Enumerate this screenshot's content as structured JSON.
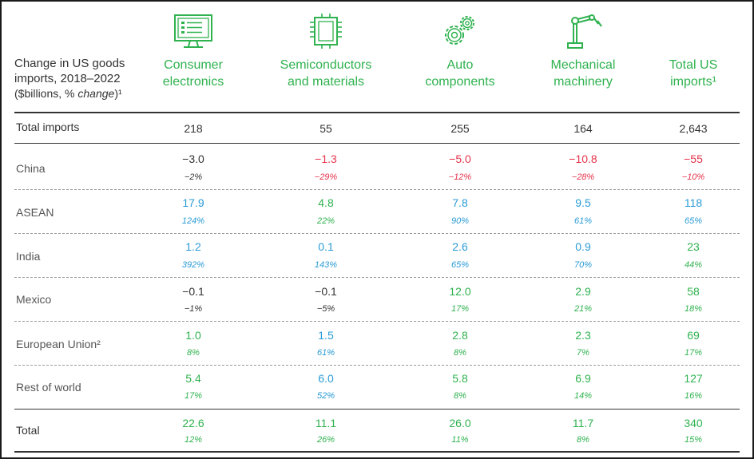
{
  "title": {
    "line1": "Change in US goods",
    "line2": "imports, 2018–2022",
    "line3_plain": "($billions, % ",
    "line3_italic": "change",
    "line3_sup": ")¹"
  },
  "columns": [
    {
      "line1": "Consumer",
      "line2": "electronics",
      "icon": "monitor-icon"
    },
    {
      "line1": "Semiconductors",
      "line2": "and materials",
      "icon": "chip-icon"
    },
    {
      "line1": "Auto",
      "line2": "components",
      "icon": "gears-icon"
    },
    {
      "line1": "Mechanical",
      "line2": "machinery",
      "icon": "robot-arm-icon"
    },
    {
      "line1": "Total US",
      "line2": "imports¹",
      "icon": ""
    }
  ],
  "colors": {
    "green": "#2fb24f",
    "red": "#e5334b",
    "blue": "#2a9bd6",
    "neutral": "#333333"
  },
  "chart_data": {
    "type": "table",
    "row_header": "Change in US goods imports, 2018–2022 ($billions, % change)¹",
    "columns": [
      "Consumer electronics",
      "Semiconductors and materials",
      "Auto components",
      "Mechanical machinery",
      "Total US imports¹"
    ],
    "rows": [
      {
        "label": "Total imports",
        "values": [
          "218",
          "55",
          "255",
          "164",
          "2,643"
        ],
        "pct": [],
        "colors": [
          "neutral",
          "neutral",
          "neutral",
          "neutral",
          "neutral"
        ]
      },
      {
        "label": "China",
        "values": [
          "−3.0",
          "−1.3",
          "−5.0",
          "−10.8",
          "−55"
        ],
        "pct": [
          "−2%",
          "−29%",
          "−12%",
          "−28%",
          "−10%"
        ],
        "colors": [
          "neutral",
          "red",
          "red",
          "red",
          "red"
        ]
      },
      {
        "label": "ASEAN",
        "values": [
          "17.9",
          "4.8",
          "7.8",
          "9.5",
          "118"
        ],
        "pct": [
          "124%",
          "22%",
          "90%",
          "61%",
          "65%"
        ],
        "colors": [
          "blue",
          "green",
          "blue",
          "blue",
          "blue"
        ]
      },
      {
        "label": "India",
        "values": [
          "1.2",
          "0.1",
          "2.6",
          "0.9",
          "23"
        ],
        "pct": [
          "392%",
          "143%",
          "65%",
          "70%",
          "44%"
        ],
        "colors": [
          "blue",
          "blue",
          "blue",
          "blue",
          "green"
        ]
      },
      {
        "label": "Mexico",
        "values": [
          "−0.1",
          "−0.1",
          "12.0",
          "2.9",
          "58"
        ],
        "pct": [
          "−1%",
          "−5%",
          "17%",
          "21%",
          "18%"
        ],
        "colors": [
          "neutral",
          "neutral",
          "green",
          "green",
          "green"
        ]
      },
      {
        "label": "European Union²",
        "values": [
          "1.0",
          "1.5",
          "2.8",
          "2.3",
          "69"
        ],
        "pct": [
          "8%",
          "61%",
          "8%",
          "7%",
          "17%"
        ],
        "colors": [
          "green",
          "blue",
          "green",
          "green",
          "green"
        ]
      },
      {
        "label": "Rest of world",
        "values": [
          "5.4",
          "6.0",
          "5.8",
          "6.9",
          "127"
        ],
        "pct": [
          "17%",
          "52%",
          "8%",
          "14%",
          "16%"
        ],
        "colors": [
          "green",
          "blue",
          "green",
          "green",
          "green"
        ]
      },
      {
        "label": "Total",
        "values": [
          "22.6",
          "11.1",
          "26.0",
          "11.7",
          "340"
        ],
        "pct": [
          "12%",
          "26%",
          "11%",
          "8%",
          "15%"
        ],
        "colors": [
          "green",
          "green",
          "green",
          "green",
          "green"
        ]
      }
    ]
  }
}
